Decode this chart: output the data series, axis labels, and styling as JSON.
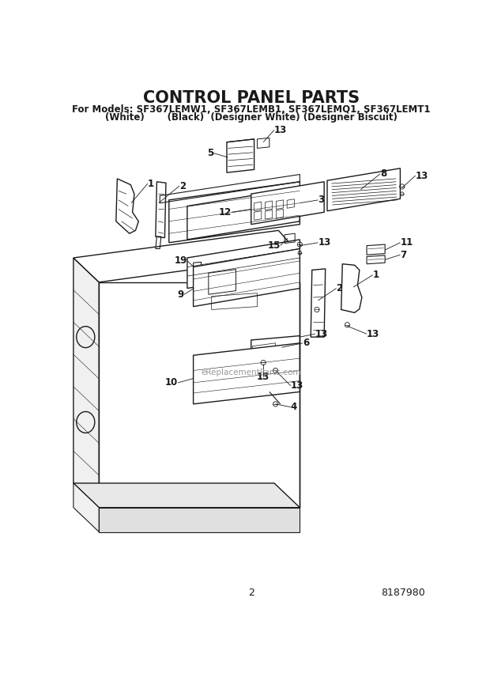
{
  "title": "CONTROL PANEL PARTS",
  "subtitle1": "For Models: SF367LEMW1, SF367LEMB1, SF367LEMQ1, SF367LEMT1",
  "subtitle2": "(White)       (Black)  (Designer White) (Designer Biscuit)",
  "page_num": "2",
  "doc_num": "8187980",
  "watermark": "eReplacementParts.com",
  "bg_color": "#ffffff",
  "line_color": "#1a1a1a",
  "title_fontsize": 15,
  "subtitle_fontsize": 8.5,
  "footer_fontsize": 9
}
